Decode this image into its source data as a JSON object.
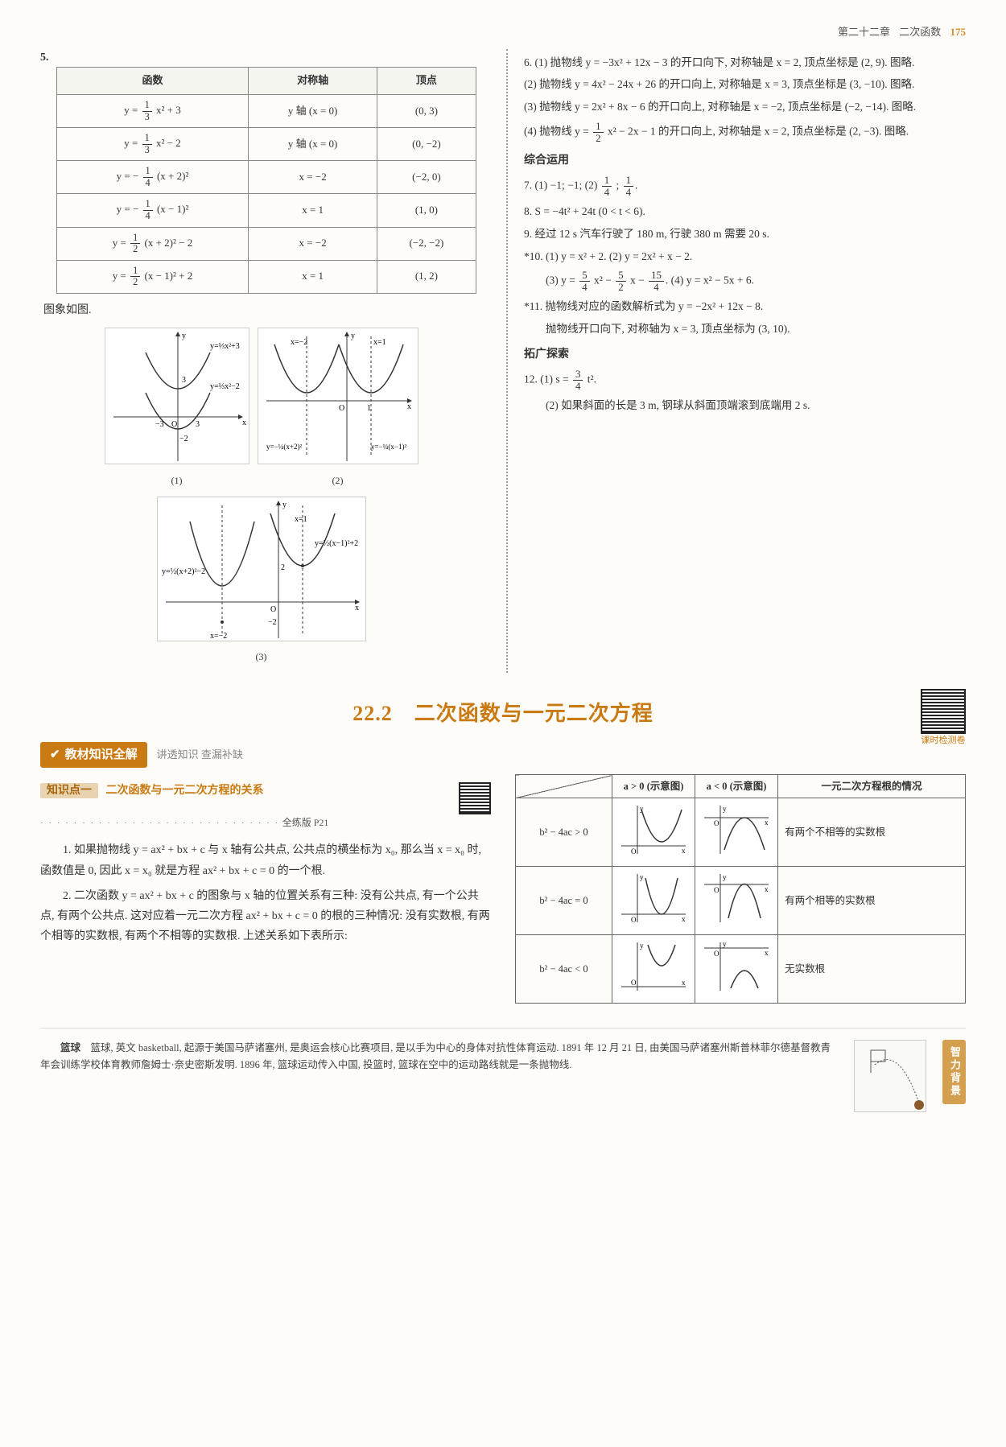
{
  "header": {
    "chapter": "第二十二章",
    "topic": "二次函数",
    "pageNum": "175"
  },
  "q5": {
    "num": "5.",
    "headers": [
      "函数",
      "对称轴",
      "顶点"
    ],
    "rows": [
      {
        "func_html": "y = <frac>1|3</frac> x² + 3",
        "axis": "y 轴 (x = 0)",
        "vertex": "(0, 3)"
      },
      {
        "func_html": "y = <frac>1|3</frac> x² − 2",
        "axis": "y 轴 (x = 0)",
        "vertex": "(0, −2)"
      },
      {
        "func_html": "y = − <frac>1|4</frac> (x + 2)²",
        "axis": "x = −2",
        "vertex": "(−2, 0)"
      },
      {
        "func_html": "y = − <frac>1|4</frac> (x − 1)²",
        "axis": "x = 1",
        "vertex": "(1, 0)"
      },
      {
        "func_html": "y = <frac>1|2</frac> (x + 2)² − 2",
        "axis": "x = −2",
        "vertex": "(−2, −2)"
      },
      {
        "func_html": "y = <frac>1|2</frac> (x − 1)² + 2",
        "axis": "x = 1",
        "vertex": "(1, 2)"
      }
    ],
    "graphNote": "图象如图.",
    "graphCaptions": [
      "(1)",
      "(2)",
      "(3)"
    ]
  },
  "rightAnswers": {
    "a6_1": "6. (1) 抛物线 y = −3x² + 12x − 3 的开口向下, 对称轴是 x = 2, 顶点坐标是 (2, 9). 图略.",
    "a6_2": "(2) 抛物线 y = 4x² − 24x + 26 的开口向上, 对称轴是 x = 3, 顶点坐标是 (3, −10). 图略.",
    "a6_3": "(3) 抛物线 y = 2x² + 8x − 6 的开口向上, 对称轴是 x = −2, 顶点坐标是 (−2, −14). 图略.",
    "a6_4_pre": "(4) 抛物线 y = ",
    "a6_4_post": " x² − 2x − 1 的开口向上, 对称轴是 x = 2, 顶点坐标是 (2, −3). 图略.",
    "synth": "综合运用",
    "a7_pre": "7. (1) −1; −1; (2) ",
    "a7_mid": " ; ",
    "a7_post": ".",
    "a8": "8. S = −4t² + 24t (0 < t < 6).",
    "a9": "9. 经过 12 s 汽车行驶了 180 m, 行驶 380 m 需要 20 s.",
    "a10_l1": "*10. (1) y = x² + 2. (2) y = 2x² + x − 2.",
    "a10_l2_pre": "(3) y = ",
    "a10_l2_mid1": " x² − ",
    "a10_l2_mid2": " x − ",
    "a10_l2_post": ". (4) y = x² − 5x + 6.",
    "a11_l1": "*11. 抛物线对应的函数解析式为 y = −2x² + 12x − 8.",
    "a11_l2": "抛物线开口向下, 对称轴为 x = 3, 顶点坐标为 (3, 10).",
    "explore": "拓广探索",
    "a12_pre": "12. (1) s = ",
    "a12_post": " t².",
    "a12_2": "(2) 如果斜面的长是 3 m, 钢球从斜面顶端滚到底端用 2 s."
  },
  "section": {
    "title": "22.2　二次函数与一元二次方程",
    "qrCaption": "课时检测卷",
    "badge": "教材知识全解",
    "badgeSub": "讲透知识 查漏补缺",
    "kpTag": "知识点一",
    "kpTitle": "二次函数与一元二次方程的关系",
    "kpRef": "全练版 P21",
    "para1": "1. 如果抛物线 y = ax² + bx + c 与 x 轴有公共点, 公共点的横坐标为 x₀, 那么当 x = x₀ 时, 函数值是 0, 因此 x = x₀ 就是方程 ax² + bx + c = 0 的一个根.",
    "para2": "2. 二次函数 y = ax² + bx + c 的图象与 x 轴的位置关系有三种: 没有公共点, 有一个公共点, 有两个公共点. 这对应着一元二次方程 ax² + bx + c = 0 的根的三种情况: 没有实数根, 有两个相等的实数根, 有两个不相等的实数根. 上述关系如下表所示:"
  },
  "discTable": {
    "headers": [
      "",
      "a > 0 (示意图)",
      "a < 0 (示意图)",
      "一元二次方程根的情况"
    ],
    "rows": [
      {
        "cond": "b² − 4ac > 0",
        "desc": "有两个不相等的实数根"
      },
      {
        "cond": "b² − 4ac = 0",
        "desc": "有两个相等的实数根"
      },
      {
        "cond": "b² − 4ac < 0",
        "desc": "无实数根"
      }
    ]
  },
  "footer": {
    "title": "篮球",
    "body": "　篮球, 英文 basketball, 起源于美国马萨诸塞州, 是奥运会核心比赛项目, 是以手为中心的身体对抗性体育运动. 1891 年 12 月 21 日, 由美国马萨诸塞州斯普林菲尔德基督教青年会训练学校体育教师詹姆士·奈史密斯发明. 1896 年, 篮球运动传入中国, 投篮时, 篮球在空中的运动路线就是一条抛物线.",
    "tag": "智力背景"
  },
  "colors": {
    "accent": "#c97a12",
    "text": "#333333",
    "tableBorder": "#888888"
  }
}
